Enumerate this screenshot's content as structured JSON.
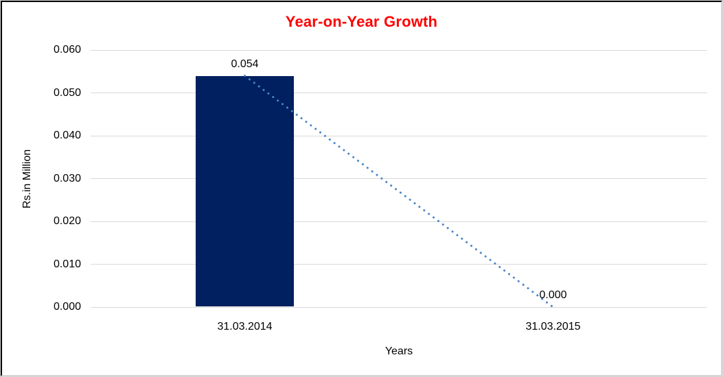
{
  "chart_data": {
    "type": "bar",
    "title": "Year-on-Year Growth",
    "title_color": "#FF0000",
    "xlabel": "Years",
    "ylabel": "Rs.in Million",
    "categories": [
      "31.03.2014",
      "31.03.2015"
    ],
    "series": [
      {
        "name": "bar-series",
        "type": "bar",
        "values": [
          0.054,
          0.0
        ],
        "data_labels": [
          "0.054",
          "0.000"
        ],
        "color": "#002060"
      },
      {
        "name": "trend-line-series",
        "type": "line",
        "values": [
          0.054,
          0.0
        ],
        "color": "#4A86C8",
        "style": "dotted"
      }
    ],
    "ylim": [
      0,
      0.06
    ],
    "yticks": [
      0,
      0.01,
      0.02,
      0.03,
      0.04,
      0.05,
      0.06
    ],
    "ytick_labels": [
      "0.000",
      "0.010",
      "0.020",
      "0.030",
      "0.040",
      "0.050",
      "0.060"
    ],
    "grid": true,
    "gridline_color": "#D9D9D9",
    "legend": "none",
    "background": "#FFFFFF"
  }
}
